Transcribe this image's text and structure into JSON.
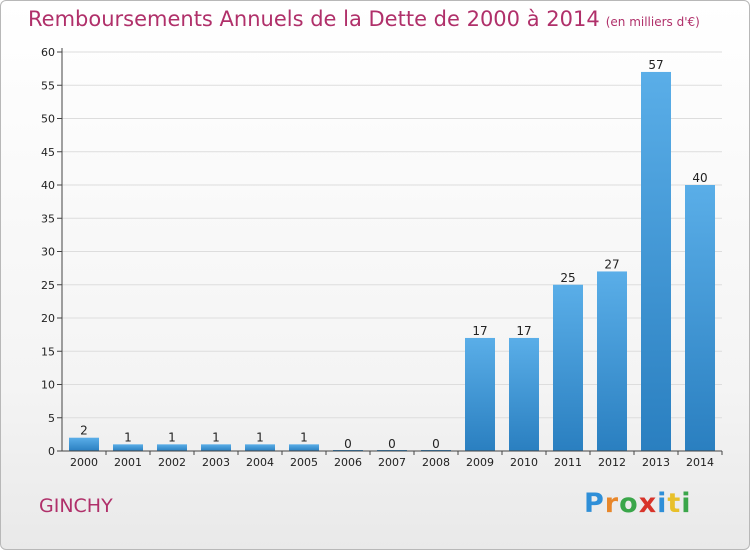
{
  "header": {
    "title": "Remboursements Annuels de la Dette de 2000 à 2014",
    "unit": "(en milliers d'€)"
  },
  "footer": {
    "town": "GINCHY",
    "logo": "Proxiti"
  },
  "colors": {
    "title": "#b0306a",
    "bar_top": "#5aaee8",
    "bar_bottom": "#2a7fc0",
    "grid": "#dddddd",
    "axis": "#444444"
  },
  "chart_data": {
    "type": "bar",
    "title": "Remboursements Annuels de la Dette de 2000 à 2014",
    "xlabel": "",
    "ylabel": "",
    "categories": [
      "2000",
      "2001",
      "2002",
      "2003",
      "2004",
      "2005",
      "2006",
      "2007",
      "2008",
      "2009",
      "2010",
      "2011",
      "2012",
      "2013",
      "2014"
    ],
    "values": [
      2,
      1,
      1,
      1,
      1,
      1,
      0,
      0,
      0,
      17,
      17,
      25,
      27,
      57,
      40
    ],
    "ylim": [
      0,
      60
    ],
    "yticks": [
      0,
      5,
      10,
      15,
      20,
      25,
      30,
      35,
      40,
      45,
      50,
      55,
      60
    ],
    "grid": true,
    "legend": "none"
  }
}
